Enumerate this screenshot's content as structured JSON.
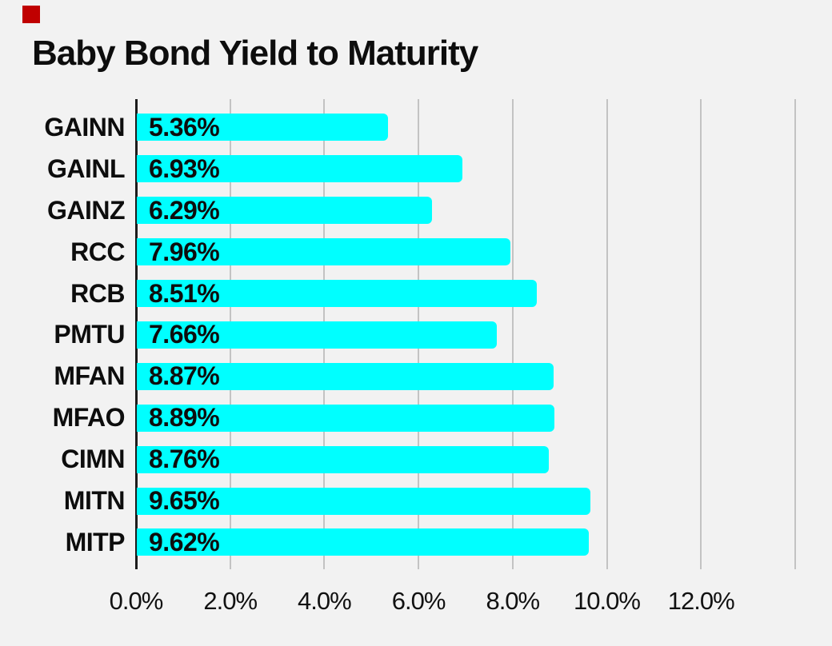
{
  "page": {
    "background_color": "#f2f2f2",
    "marker": {
      "name": "red-square-marker",
      "color": "#c00000"
    }
  },
  "title": "Baby Bond Yield to Maturity",
  "chart_data": {
    "type": "bar",
    "orientation": "horizontal",
    "title": "Baby Bond Yield to Maturity",
    "xlabel": "",
    "ylabel": "",
    "categories": [
      "GAINN",
      "GAINL",
      "GAINZ",
      "RCC",
      "RCB",
      "PMTU",
      "MFAN",
      "MFAO",
      "CIMN",
      "MITN",
      "MITP"
    ],
    "values": [
      5.36,
      6.93,
      6.29,
      7.96,
      8.51,
      7.66,
      8.87,
      8.89,
      8.76,
      9.65,
      9.62
    ],
    "value_labels": [
      "5.36%",
      "6.93%",
      "6.29%",
      "7.96%",
      "8.51%",
      "7.66%",
      "8.87%",
      "8.89%",
      "8.76%",
      "9.65%",
      "9.62%"
    ],
    "x_tick_labels": [
      "0.0%",
      "2.0%",
      "4.0%",
      "6.0%",
      "8.0%",
      "10.0%",
      "12.0%"
    ],
    "x_tick_values": [
      0,
      2,
      4,
      6,
      8,
      10,
      12
    ],
    "x_grid_values": [
      0,
      2,
      4,
      6,
      8,
      10,
      12,
      14
    ],
    "xlim": [
      0,
      14
    ],
    "grid": true,
    "legend": false,
    "bar_color": "#00ffff",
    "gridline_color": "#c3c3c3",
    "axis_line_color": "#1c1c1c",
    "text_color": "#0d0d0d",
    "background_color": "#f2f2f2"
  }
}
